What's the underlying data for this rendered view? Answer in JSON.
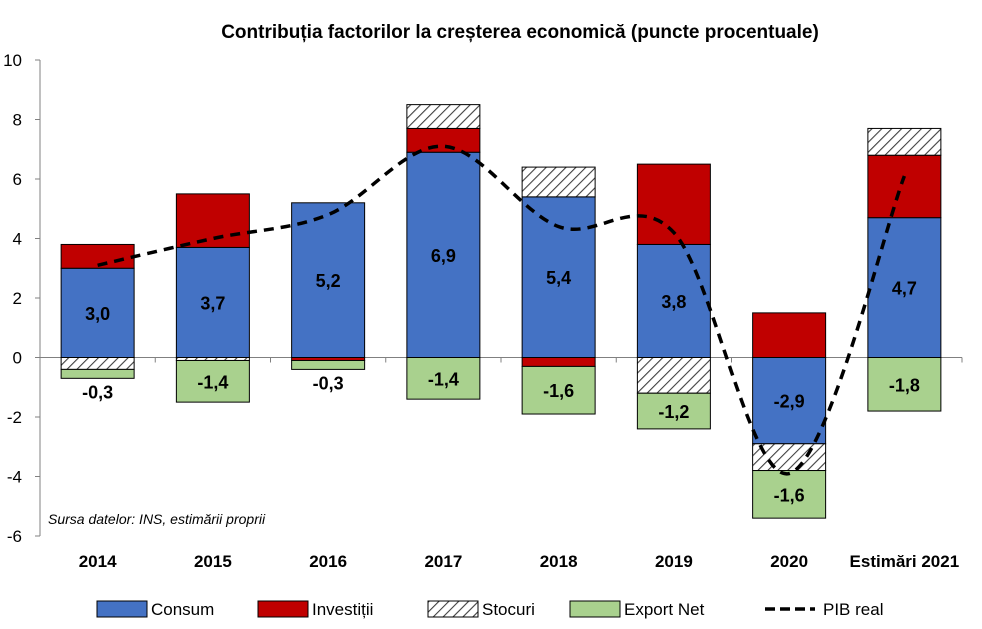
{
  "chart_data": {
    "type": "bar",
    "stacked": true,
    "title": "Contribuția factorilor la creșterea economică (puncte procentuale)",
    "categories": [
      "2014",
      "2015",
      "2016",
      "2017",
      "2018",
      "2019",
      "2020",
      "Estimări 2021"
    ],
    "ylim": [
      -6,
      10
    ],
    "yticks": [
      -6,
      -4,
      -2,
      0,
      2,
      4,
      6,
      8,
      10
    ],
    "grid": false,
    "legend_position": "bottom",
    "series": [
      {
        "name": "Consum",
        "type": "bar",
        "color": "#4472C4",
        "values": [
          3.0,
          3.7,
          5.2,
          6.9,
          5.4,
          3.8,
          -2.9,
          4.7
        ]
      },
      {
        "name": "Investiții",
        "type": "bar",
        "color": "#C00000",
        "values": [
          0.8,
          1.8,
          -0.1,
          0.8,
          -0.3,
          2.7,
          1.5,
          2.1
        ]
      },
      {
        "name": "Stocuri",
        "type": "bar",
        "pattern": "hatch",
        "values": [
          -0.4,
          -0.1,
          0.0,
          0.8,
          1.0,
          -1.2,
          -0.9,
          0.9
        ]
      },
      {
        "name": "Export Net",
        "type": "bar",
        "color": "#A9D18E",
        "values": [
          -0.3,
          -1.4,
          -0.3,
          -1.4,
          -1.6,
          -1.2,
          -1.6,
          -1.8
        ]
      },
      {
        "name": "PIB real",
        "type": "line",
        "style": "dashed",
        "color": "#000000",
        "values": [
          3.1,
          4.0,
          4.8,
          7.1,
          4.4,
          4.2,
          -3.9,
          6.1
        ]
      }
    ],
    "data_labels": {
      "consum": [
        "3,0",
        "3,7",
        "5,2",
        "6,9",
        "5,4",
        "3,8",
        "-2,9",
        "4,7"
      ],
      "export_net": [
        "-0,3",
        "-1,4",
        "-0,3",
        "-1,4",
        "-1,6",
        "-1,2",
        "-1,6",
        "-1,8"
      ]
    },
    "source_note": "Sursa datelor: INS, estimării proprii"
  }
}
